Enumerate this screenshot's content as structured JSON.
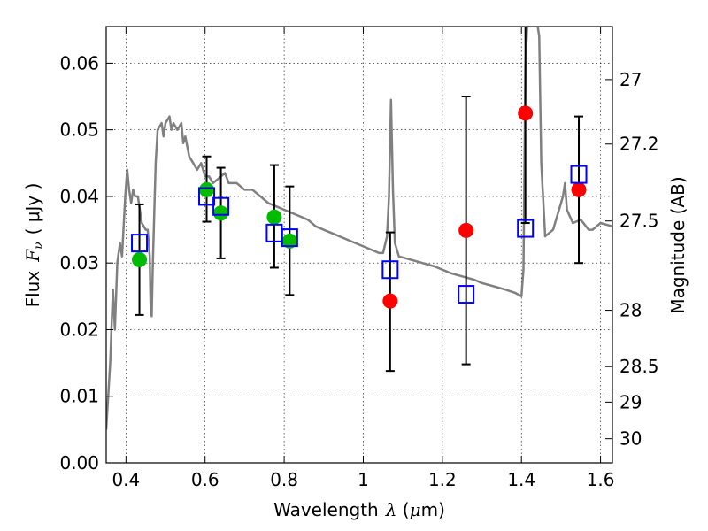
{
  "chart_data": {
    "type": "scatter",
    "xlabel": {
      "prefix": "Wavelength",
      "symbol": "λ",
      "unit_open": " (",
      "unit_mu": "μ",
      "unit_rest": "m)"
    },
    "ylabel": {
      "prefix": "Flux",
      "symbol": "F",
      "subscript": "ν",
      "unit": "( μJy )"
    },
    "y2label": "Magnitude (AB)",
    "xlim": [
      0.35,
      1.63
    ],
    "ylim": [
      0.0,
      0.0655
    ],
    "grid": true,
    "x_ticks": [
      {
        "v": 0.4,
        "label": "0.4"
      },
      {
        "v": 0.6,
        "label": "0.6"
      },
      {
        "v": 0.8,
        "label": "0.8"
      },
      {
        "v": 1.0,
        "label": "1"
      },
      {
        "v": 1.2,
        "label": "1.2"
      },
      {
        "v": 1.4,
        "label": "1.4"
      },
      {
        "v": 1.6,
        "label": "1.6"
      }
    ],
    "y_ticks": [
      {
        "v": 0.0,
        "label": "0.00"
      },
      {
        "v": 0.01,
        "label": "0.01"
      },
      {
        "v": 0.02,
        "label": "0.02"
      },
      {
        "v": 0.03,
        "label": "0.03"
      },
      {
        "v": 0.04,
        "label": "0.04"
      },
      {
        "v": 0.05,
        "label": "0.05"
      },
      {
        "v": 0.06,
        "label": "0.06"
      }
    ],
    "y2_ticks": [
      {
        "mag": 27,
        "label": "27"
      },
      {
        "mag": 27.2,
        "label": "27.2"
      },
      {
        "mag": 27.5,
        "label": "27.5"
      },
      {
        "mag": 28,
        "label": "28"
      },
      {
        "mag": 28.5,
        "label": "28.5"
      },
      {
        "mag": 29,
        "label": "29"
      },
      {
        "mag": 30,
        "label": "30"
      }
    ],
    "series": [
      {
        "color": "#808080",
        "kind": "line",
        "points": [
          [
            0.35,
            0.005
          ],
          [
            0.36,
            0.015
          ],
          [
            0.367,
            0.026
          ],
          [
            0.372,
            0.02
          ],
          [
            0.378,
            0.03
          ],
          [
            0.385,
            0.033
          ],
          [
            0.39,
            0.031
          ],
          [
            0.398,
            0.04
          ],
          [
            0.403,
            0.044
          ],
          [
            0.408,
            0.041
          ],
          [
            0.413,
            0.039
          ],
          [
            0.418,
            0.041
          ],
          [
            0.423,
            0.04
          ],
          [
            0.43,
            0.04
          ],
          [
            0.44,
            0.036
          ],
          [
            0.45,
            0.035
          ],
          [
            0.455,
            0.035
          ],
          [
            0.46,
            0.031
          ],
          [
            0.462,
            0.024
          ],
          [
            0.465,
            0.022
          ],
          [
            0.468,
            0.03
          ],
          [
            0.475,
            0.045
          ],
          [
            0.48,
            0.05
          ],
          [
            0.49,
            0.051
          ],
          [
            0.495,
            0.049
          ],
          [
            0.5,
            0.051
          ],
          [
            0.51,
            0.052
          ],
          [
            0.515,
            0.05
          ],
          [
            0.52,
            0.051
          ],
          [
            0.53,
            0.05
          ],
          [
            0.54,
            0.051
          ],
          [
            0.545,
            0.048
          ],
          [
            0.55,
            0.049
          ],
          [
            0.56,
            0.046
          ],
          [
            0.57,
            0.045
          ],
          [
            0.58,
            0.044
          ],
          [
            0.59,
            0.045
          ],
          [
            0.6,
            0.043
          ],
          [
            0.61,
            0.043
          ],
          [
            0.62,
            0.042
          ],
          [
            0.64,
            0.043
          ],
          [
            0.65,
            0.0435
          ],
          [
            0.66,
            0.042
          ],
          [
            0.67,
            0.042
          ],
          [
            0.68,
            0.042
          ],
          [
            0.7,
            0.041
          ],
          [
            0.72,
            0.041
          ],
          [
            0.74,
            0.04
          ],
          [
            0.76,
            0.039
          ],
          [
            0.78,
            0.0385
          ],
          [
            0.8,
            0.038
          ],
          [
            0.82,
            0.0375
          ],
          [
            0.84,
            0.037
          ],
          [
            0.86,
            0.0365
          ],
          [
            0.88,
            0.0355
          ],
          [
            0.9,
            0.035
          ],
          [
            0.92,
            0.0345
          ],
          [
            0.94,
            0.034
          ],
          [
            0.96,
            0.0335
          ],
          [
            0.98,
            0.033
          ],
          [
            1.0,
            0.0325
          ],
          [
            1.02,
            0.032
          ],
          [
            1.04,
            0.0315
          ],
          [
            1.05,
            0.0315
          ],
          [
            1.06,
            0.034
          ],
          [
            1.065,
            0.04
          ],
          [
            1.07,
            0.0545
          ],
          [
            1.075,
            0.041
          ],
          [
            1.08,
            0.033
          ],
          [
            1.09,
            0.031
          ],
          [
            1.12,
            0.0305
          ],
          [
            1.15,
            0.03
          ],
          [
            1.18,
            0.0295
          ],
          [
            1.2,
            0.029
          ],
          [
            1.22,
            0.0285
          ],
          [
            1.25,
            0.028
          ],
          [
            1.28,
            0.0275
          ],
          [
            1.3,
            0.027
          ],
          [
            1.33,
            0.0265
          ],
          [
            1.36,
            0.026
          ],
          [
            1.385,
            0.0255
          ],
          [
            1.4,
            0.025
          ],
          [
            1.405,
            0.029
          ],
          [
            1.41,
            0.06
          ],
          [
            1.415,
            0.066
          ],
          [
            1.44,
            0.066
          ],
          [
            1.445,
            0.064
          ],
          [
            1.45,
            0.045
          ],
          [
            1.46,
            0.034
          ],
          [
            1.48,
            0.035
          ],
          [
            1.49,
            0.037
          ],
          [
            1.5,
            0.039
          ],
          [
            1.505,
            0.04
          ],
          [
            1.51,
            0.042
          ],
          [
            1.515,
            0.038
          ],
          [
            1.53,
            0.036
          ],
          [
            1.55,
            0.0365
          ],
          [
            1.57,
            0.035
          ],
          [
            1.58,
            0.035
          ],
          [
            1.6,
            0.036
          ],
          [
            1.63,
            0.0355
          ]
        ]
      },
      {
        "color": "#00bb00",
        "kind": "points",
        "points": [
          [
            0.434,
            0.0305
          ],
          [
            0.604,
            0.041
          ],
          [
            0.64,
            0.0375
          ],
          [
            0.775,
            0.0369
          ],
          [
            0.814,
            0.0333
          ]
        ]
      },
      {
        "color": "#ff0000",
        "kind": "points",
        "points": [
          [
            1.068,
            0.0243
          ],
          [
            1.26,
            0.0349
          ],
          [
            1.41,
            0.0525
          ],
          [
            1.545,
            0.041
          ]
        ]
      },
      {
        "color": "#0000ff",
        "kind": "squares",
        "points": [
          [
            0.434,
            0.033
          ],
          [
            0.604,
            0.04
          ],
          [
            0.64,
            0.0385
          ],
          [
            0.775,
            0.0345
          ],
          [
            0.814,
            0.0338
          ],
          [
            1.068,
            0.029
          ],
          [
            1.26,
            0.0253
          ],
          [
            1.41,
            0.0352
          ],
          [
            1.545,
            0.0433
          ]
        ]
      }
    ],
    "error_bars": [
      {
        "x": 0.434,
        "low": 0.0222,
        "high": 0.0388
      },
      {
        "x": 0.604,
        "low": 0.0362,
        "high": 0.046
      },
      {
        "x": 0.64,
        "low": 0.0307,
        "high": 0.0443
      },
      {
        "x": 0.775,
        "low": 0.0293,
        "high": 0.0447
      },
      {
        "x": 0.814,
        "low": 0.0252,
        "high": 0.0415
      },
      {
        "x": 1.068,
        "low": 0.0138,
        "high": 0.0346
      },
      {
        "x": 1.26,
        "low": 0.0148,
        "high": 0.055
      },
      {
        "x": 1.41,
        "low": 0.036,
        "high": 0.0655
      },
      {
        "x": 1.545,
        "low": 0.03,
        "high": 0.052
      }
    ]
  }
}
